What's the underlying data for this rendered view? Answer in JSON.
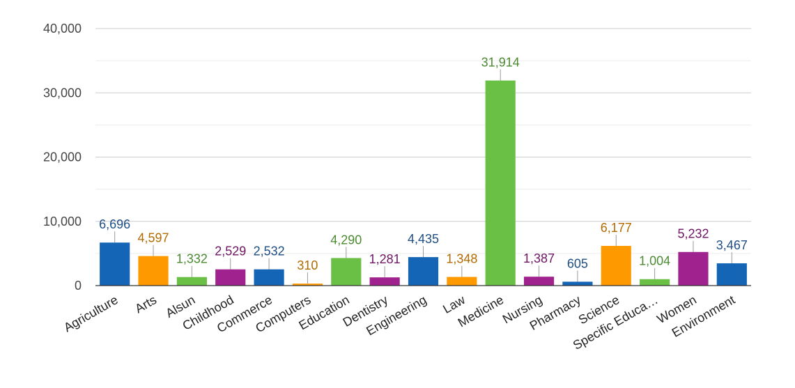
{
  "chart_data": {
    "type": "bar",
    "categories": [
      "Agriculture",
      "Arts",
      "Alsun",
      "Childhood",
      "Commerce",
      "Computers",
      "Education",
      "Dentistry",
      "Engineering",
      "Law",
      "Medicine",
      "Nursing",
      "Pharmacy",
      "Science",
      "Specific Educa…",
      "Women",
      "Environment"
    ],
    "values": [
      6696,
      4597,
      1332,
      2529,
      2532,
      310,
      4290,
      1281,
      4435,
      1348,
      31914,
      1387,
      605,
      6177,
      1004,
      5232,
      3467
    ],
    "value_labels": [
      "6,696",
      "4,597",
      "1,332",
      "2,529",
      "2,532",
      "310",
      "4,290",
      "1,281",
      "4,435",
      "1,348",
      "31,914",
      "1,387",
      "605",
      "6,177",
      "1,004",
      "5,232",
      "3,467"
    ],
    "bar_colors": [
      "#1565b6",
      "#ff9900",
      "#6abf45",
      "#a0228f",
      "#1565b6",
      "#ff9900",
      "#6abf45",
      "#a0228f",
      "#1565b6",
      "#ff9900",
      "#6abf45",
      "#a0228f",
      "#1565b6",
      "#ff9900",
      "#6abf45",
      "#a0228f",
      "#1565b6"
    ],
    "label_colors": [
      "#1f4e85",
      "#b26a00",
      "#4a8a31",
      "#6e1463",
      "#1f4e85",
      "#b26a00",
      "#4a8a31",
      "#6e1463",
      "#1f4e85",
      "#b26a00",
      "#4a8a31",
      "#6e1463",
      "#1f4e85",
      "#b26a00",
      "#4a8a31",
      "#6e1463",
      "#1f4e85"
    ],
    "yticks": [
      0,
      10000,
      20000,
      30000,
      40000
    ],
    "ytick_labels": [
      "0",
      "10,000",
      "20,000",
      "30,000",
      "40,000"
    ],
    "ylim": [
      0,
      40000
    ],
    "minor_gridlines": true,
    "title": "",
    "xlabel": "",
    "ylabel": ""
  }
}
